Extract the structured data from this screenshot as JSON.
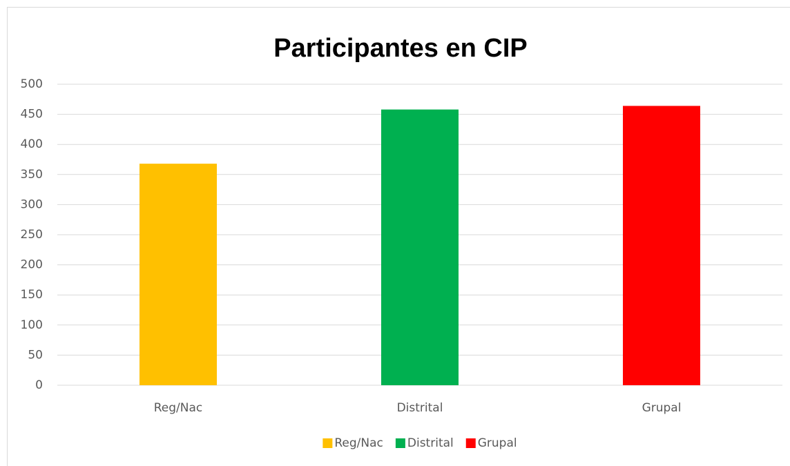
{
  "chart_data": {
    "type": "bar",
    "title": "Participantes en CIP",
    "categories": [
      "Reg/Nac",
      "Distrital",
      "Grupal"
    ],
    "values": [
      368,
      458,
      464
    ],
    "colors": [
      "#ffc000",
      "#00b050",
      "#ff0000"
    ],
    "ylim": [
      0,
      500
    ],
    "yticks": [
      0,
      50,
      100,
      150,
      200,
      250,
      300,
      350,
      400,
      450,
      500
    ],
    "grid": true,
    "legend": "bottom"
  }
}
